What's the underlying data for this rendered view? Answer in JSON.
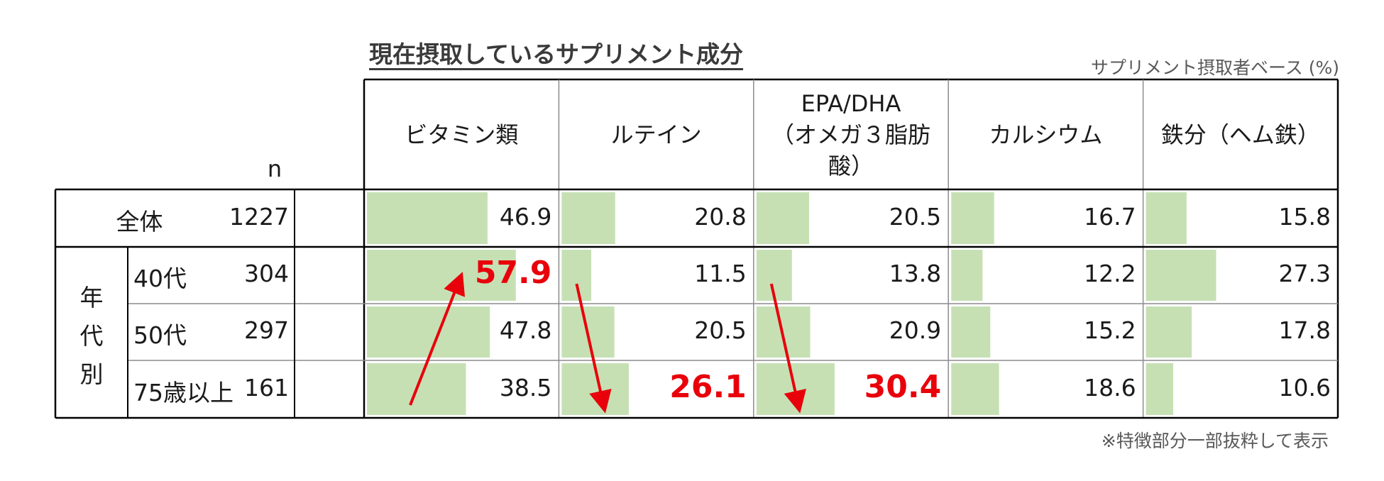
{
  "title": "現在摂取しているサプリメント成分",
  "base_label": "サプリメント摂取者ベース (%)",
  "footnote": "※特徴部分一部抜粋して表示",
  "colors": {
    "bar": "#c6e0b4",
    "highlight": "#e8000b",
    "arrow": "#e8000b"
  },
  "chart_data": {
    "type": "table",
    "title": "現在摂取しているサプリメント成分",
    "n_header": "n",
    "group_label": "年代別",
    "columns": [
      "ビタミン類",
      "ルテイン",
      "EPA/DHA（オメガ３脂肪酸）",
      "カルシウム",
      "鉄分（ヘム鉄）"
    ],
    "column_lines": [
      [
        "ビタミン類"
      ],
      [
        "ルテイン"
      ],
      [
        "EPA/DHA",
        "（オメガ３脂肪",
        "酸）"
      ],
      [
        "カルシウム"
      ],
      [
        "鉄分（ヘム鉄）"
      ]
    ],
    "rows": [
      {
        "label": "全体",
        "n": "1227",
        "values": [
          46.9,
          20.8,
          20.5,
          16.7,
          15.8
        ],
        "labels": [
          "46.9",
          "20.8",
          "20.5",
          "16.7",
          "15.8"
        ]
      },
      {
        "label": "40代",
        "n": "304",
        "values": [
          57.9,
          11.5,
          13.8,
          12.2,
          27.3
        ],
        "labels": [
          "57.9",
          "11.5",
          "13.8",
          "12.2",
          "27.3"
        ]
      },
      {
        "label": "50代",
        "n": "297",
        "values": [
          47.8,
          20.5,
          20.9,
          15.2,
          17.8
        ],
        "labels": [
          "47.8",
          "20.5",
          "20.9",
          "15.2",
          "17.8"
        ]
      },
      {
        "label": "75歳以上",
        "n": "161",
        "values": [
          38.5,
          26.1,
          30.4,
          18.6,
          10.6
        ],
        "labels": [
          "38.5",
          "26.1",
          "30.4",
          "18.6",
          "10.6"
        ]
      }
    ],
    "highlighted": [
      [
        1,
        0
      ],
      [
        3,
        1
      ],
      [
        3,
        2
      ]
    ],
    "bar_scale_max": 100,
    "arrows": [
      {
        "column": 0,
        "from_row": 3,
        "to_row": 1,
        "direction": "up"
      },
      {
        "column": 1,
        "from_row": 1,
        "to_row": 3,
        "direction": "down"
      },
      {
        "column": 2,
        "from_row": 1,
        "to_row": 3,
        "direction": "down"
      }
    ]
  }
}
